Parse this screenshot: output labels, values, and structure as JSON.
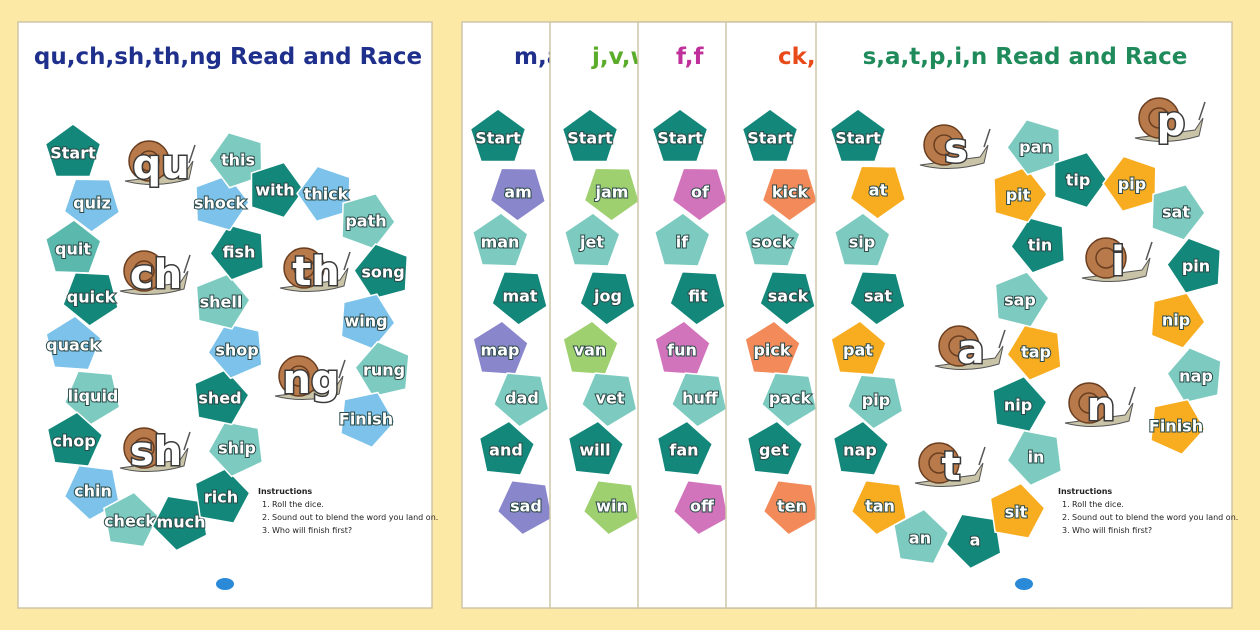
{
  "sheets": [
    {
      "title": "qu,ch,sh,th,ng Read and Race",
      "title_color": "#1f2f8c",
      "cells": [
        {
          "label": "Start",
          "color": "#13877a"
        },
        {
          "label": "quiz",
          "color": "#7cc2ea"
        },
        {
          "label": "quit",
          "color": "#5bb8ad"
        },
        {
          "label": "quick",
          "color": "#13877a"
        },
        {
          "label": "quack",
          "color": "#7cc2ea"
        },
        {
          "label": "liquid",
          "color": "#7dcbc0"
        },
        {
          "label": "chop",
          "color": "#13877a"
        },
        {
          "label": "chin",
          "color": "#7cc2ea"
        },
        {
          "label": "check",
          "color": "#7dcbc0"
        },
        {
          "label": "much",
          "color": "#13877a"
        },
        {
          "label": "rich",
          "color": "#13877a"
        },
        {
          "label": "ship",
          "color": "#7dcbc0"
        },
        {
          "label": "shed",
          "color": "#13877a"
        },
        {
          "label": "shop",
          "color": "#7cc2ea"
        },
        {
          "label": "shell",
          "color": "#7dcbc0"
        },
        {
          "label": "fish",
          "color": "#13877a"
        },
        {
          "label": "shock",
          "color": "#7cc2ea"
        },
        {
          "label": "this",
          "color": "#7dcbc0"
        },
        {
          "label": "with",
          "color": "#13877a"
        },
        {
          "label": "thick",
          "color": "#7cc2ea"
        },
        {
          "label": "path",
          "color": "#7dcbc0"
        },
        {
          "label": "song",
          "color": "#13877a"
        },
        {
          "label": "wing",
          "color": "#7cc2ea"
        },
        {
          "label": "rung",
          "color": "#7dcbc0"
        },
        {
          "label": "Finish",
          "color": "#7cc2ea"
        }
      ],
      "snails": [
        "qu",
        "ch",
        "th",
        "ng",
        "sh"
      ],
      "instructions": {
        "heading": "Instructions",
        "items": [
          {
            "number": "1.",
            "text": "Roll the dice."
          },
          {
            "number": "2.",
            "text": "Sound out to blend the word you land on."
          },
          {
            "number": "3.",
            "text": "Who will finish first?"
          }
        ]
      }
    },
    {
      "title": "m,a",
      "title_color": "#1f2f8c",
      "cells": [
        {
          "label": "Start",
          "color": "#13877a"
        },
        {
          "label": "am",
          "color": "#8a86cc"
        },
        {
          "label": "man",
          "color": "#7dcbc0"
        },
        {
          "label": "mat",
          "color": "#13877a"
        },
        {
          "label": "map",
          "color": "#8a86cc"
        },
        {
          "label": "dad",
          "color": "#7dcbc0"
        },
        {
          "label": "and",
          "color": "#13877a"
        },
        {
          "label": "sad",
          "color": "#8a86cc"
        }
      ]
    },
    {
      "title": "j,v,w",
      "title_color": "#5aac2a",
      "cells": [
        {
          "label": "Start",
          "color": "#13877a"
        },
        {
          "label": "jam",
          "color": "#9fd070"
        },
        {
          "label": "jet",
          "color": "#7dcbc0"
        },
        {
          "label": "jog",
          "color": "#13877a"
        },
        {
          "label": "van",
          "color": "#9fd070"
        },
        {
          "label": "vet",
          "color": "#7dcbc0"
        },
        {
          "label": "will",
          "color": "#13877a"
        },
        {
          "label": "win",
          "color": "#9fd070"
        }
      ]
    },
    {
      "title": "f,f",
      "title_color": "#c0309a",
      "cells": [
        {
          "label": "Start",
          "color": "#13877a"
        },
        {
          "label": "of",
          "color": "#d274bc"
        },
        {
          "label": "if",
          "color": "#7dcbc0"
        },
        {
          "label": "fit",
          "color": "#13877a"
        },
        {
          "label": "fun",
          "color": "#d274bc"
        },
        {
          "label": "huff",
          "color": "#7dcbc0"
        },
        {
          "label": "fan",
          "color": "#13877a"
        },
        {
          "label": "off",
          "color": "#d274bc"
        }
      ]
    },
    {
      "title": "ck,e",
      "title_color": "#e84a1a",
      "cells": [
        {
          "label": "Start",
          "color": "#13877a"
        },
        {
          "label": "kick",
          "color": "#f28a5a"
        },
        {
          "label": "sock",
          "color": "#7dcbc0"
        },
        {
          "label": "sack",
          "color": "#13877a"
        },
        {
          "label": "pick",
          "color": "#f28a5a"
        },
        {
          "label": "pack",
          "color": "#7dcbc0"
        },
        {
          "label": "get",
          "color": "#13877a"
        },
        {
          "label": "ten",
          "color": "#f28a5a"
        }
      ]
    },
    {
      "title": "s,a,t,p,i,n Read and Race",
      "title_color": "#1f8a5a",
      "cells": [
        {
          "label": "Start",
          "color": "#13877a"
        },
        {
          "label": "at",
          "color": "#f8ac20"
        },
        {
          "label": "sip",
          "color": "#7dcbc0"
        },
        {
          "label": "sat",
          "color": "#13877a"
        },
        {
          "label": "pat",
          "color": "#f8ac20"
        },
        {
          "label": "pip",
          "color": "#7dcbc0"
        },
        {
          "label": "nap",
          "color": "#13877a"
        },
        {
          "label": "tan",
          "color": "#f8ac20"
        },
        {
          "label": "an",
          "color": "#7dcbc0"
        },
        {
          "label": "a",
          "color": "#13877a"
        },
        {
          "label": "sit",
          "color": "#f8ac20"
        },
        {
          "label": "in",
          "color": "#7dcbc0"
        },
        {
          "label": "nip",
          "color": "#13877a"
        },
        {
          "label": "tap",
          "color": "#f8ac20"
        },
        {
          "label": "sap",
          "color": "#7dcbc0"
        },
        {
          "label": "tin",
          "color": "#13877a"
        },
        {
          "label": "pit",
          "color": "#f8ac20"
        },
        {
          "label": "pan",
          "color": "#7dcbc0"
        },
        {
          "label": "tip",
          "color": "#13877a"
        },
        {
          "label": "pip",
          "color": "#f8ac20"
        },
        {
          "label": "sat",
          "color": "#7dcbc0"
        },
        {
          "label": "pin",
          "color": "#13877a"
        },
        {
          "label": "nip",
          "color": "#f8ac20"
        },
        {
          "label": "nap",
          "color": "#7dcbc0"
        },
        {
          "label": "Finish",
          "color": "#f8ac20"
        }
      ],
      "snails": [
        "s",
        "p",
        "i",
        "a",
        "n",
        "t"
      ],
      "instructions": {
        "heading": "Instructions",
        "items": [
          {
            "number": "1.",
            "text": "Roll the dice."
          },
          {
            "number": "2.",
            "text": "Sound out to blend the word you land on."
          },
          {
            "number": "3.",
            "text": "Who will finish first?"
          }
        ]
      }
    }
  ]
}
